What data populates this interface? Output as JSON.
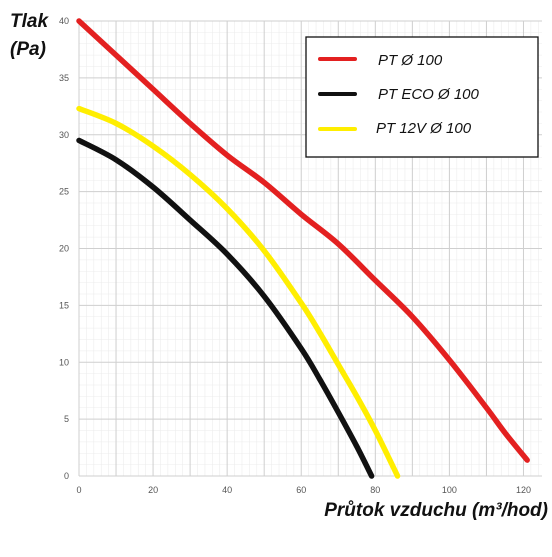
{
  "chart_data": {
    "type": "line",
    "title": "",
    "ylabel_line1": "Tlak",
    "ylabel_line2": "(Pa)",
    "xlabel": "Průtok vzduchu (m³/hod)",
    "xlim": [
      0,
      125
    ],
    "ylim": [
      0,
      40
    ],
    "xticks": [
      0,
      20,
      40,
      60,
      80,
      100,
      120
    ],
    "yticks": [
      0,
      5,
      10,
      15,
      20,
      25,
      30,
      35,
      40
    ],
    "grid": true,
    "minor_grid": true,
    "legend_position": "top-right",
    "series": [
      {
        "name": "PT Ø 100",
        "color": "#e32020",
        "x": [
          0,
          10,
          20,
          30,
          40,
          50,
          60,
          70,
          80,
          90,
          100,
          110,
          115,
          121
        ],
        "y": [
          40,
          37,
          34,
          31,
          28.2,
          25.8,
          23,
          20.4,
          17.2,
          14,
          10.2,
          6,
          3.8,
          1.4
        ]
      },
      {
        "name": "PT ECO Ø 100",
        "color": "#111111",
        "x": [
          0,
          10,
          20,
          30,
          40,
          50,
          60,
          65,
          70,
          75,
          79
        ],
        "y": [
          29.5,
          27.8,
          25.4,
          22.5,
          19.5,
          15.8,
          11.2,
          8.5,
          5.6,
          2.6,
          0
        ]
      },
      {
        "name": "PT 12V Ø 100",
        "color": "#ffee00",
        "x": [
          0,
          10,
          20,
          30,
          40,
          50,
          60,
          65,
          70,
          75,
          80,
          86
        ],
        "y": [
          32.3,
          31,
          29,
          26.5,
          23.5,
          19.8,
          15.2,
          12.6,
          9.8,
          7,
          4,
          0
        ]
      }
    ]
  }
}
